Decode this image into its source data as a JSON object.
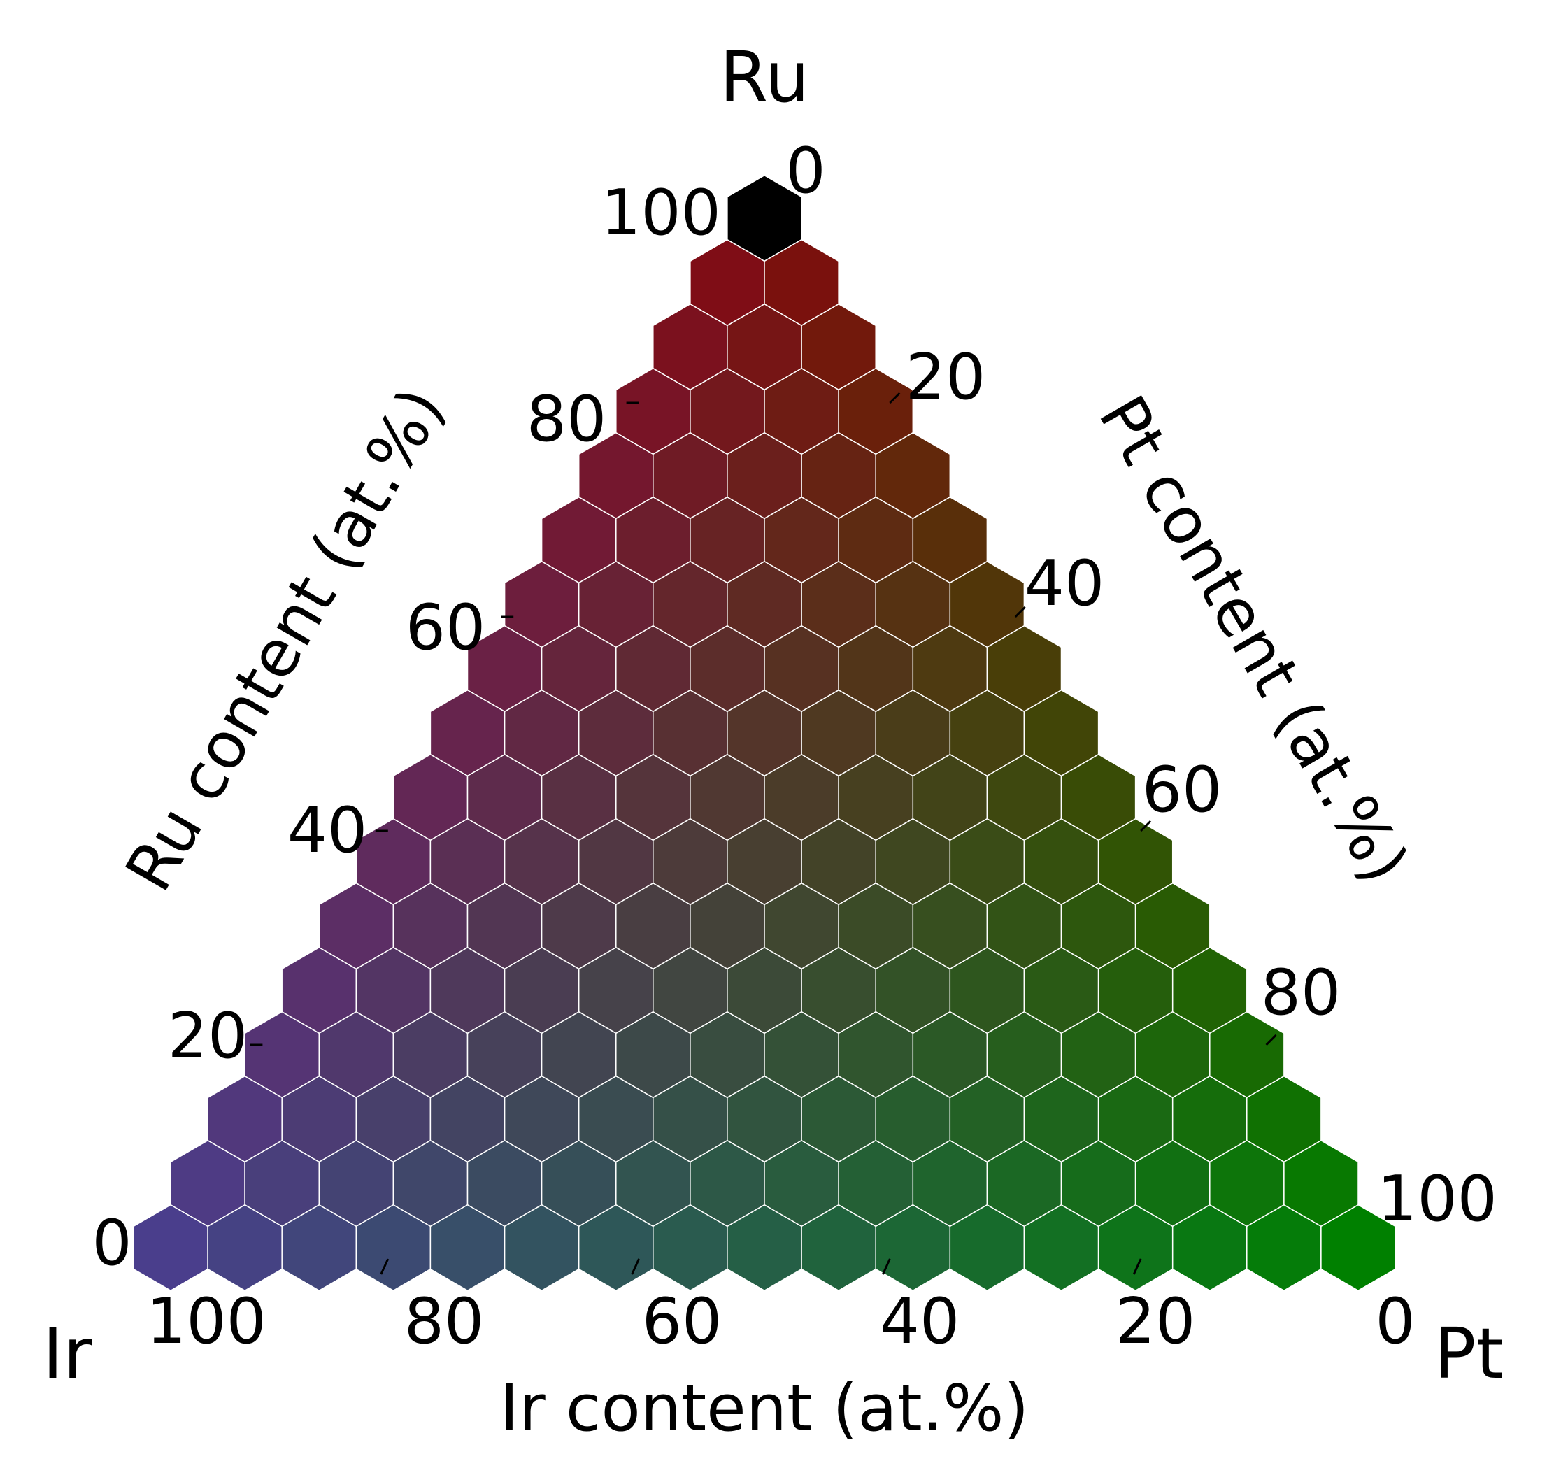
{
  "chart_data": {
    "type": "heatmap",
    "subtype": "ternary-hexbin",
    "corners": {
      "top": "Ru",
      "left": "Ir",
      "right": "Pt"
    },
    "axes": {
      "bottom": {
        "label": "Ir content (at.%)",
        "ticks": [
          "100",
          "80",
          "60",
          "40",
          "20",
          "0"
        ]
      },
      "left": {
        "label": "Ru content (at.%)",
        "ticks": [
          "0",
          "20",
          "40",
          "60",
          "80",
          "100"
        ]
      },
      "right": {
        "label": "Pt content (at.%)",
        "ticks": [
          "0",
          "20",
          "40",
          "60",
          "80",
          "100"
        ]
      }
    },
    "resolution": 16,
    "step_at_percent": 6.25,
    "color_encoding": "hex color derived from composition: Ir to blue/purple, Ru to red, Pt to green",
    "vertex_colors": {
      "Ir": "#4a3e8c",
      "Ru": "#000000",
      "Pt": "#008000"
    },
    "ru_near_corner": "#820a0e",
    "grid": false,
    "legend": "none"
  }
}
